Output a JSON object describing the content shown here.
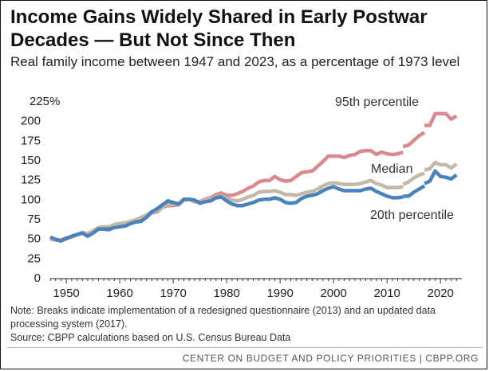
{
  "title": "Income Gains Widely Shared in Early Postwar Decades — But Not Since Then",
  "subtitle": "Real family income between 1947 and 2023, as a percentage of 1973 level",
  "note": "Note: Breaks indicate implementation of a redesigned questionnaire (2013) and an updated data processing system (2017).",
  "source": "Source: CBPP calculations based on U.S. Census Bureau Data",
  "footer": "CENTER ON BUDGET AND POLICY PRIORITIES | CBPP.ORG",
  "chart_data": {
    "type": "line",
    "title": "Income Gains Widely Shared in Early Postwar Decades — But Not Since Then",
    "subtitle": "Real family income between 1947 and 2023, as a percentage of 1973 level",
    "xlim": [
      1947,
      2024
    ],
    "ylim": [
      0,
      225
    ],
    "x_ticks": [
      1950,
      1960,
      1970,
      1980,
      1990,
      2000,
      2010,
      2020
    ],
    "y_ticks": [
      0,
      25,
      50,
      75,
      100,
      125,
      150,
      175,
      200,
      225
    ],
    "y_tick_labels": [
      "0",
      "25",
      "50",
      "75",
      "100",
      "125",
      "150",
      "175",
      "200",
      "225%"
    ],
    "grid": false,
    "breaks": [
      2013,
      2017
    ],
    "series": [
      {
        "name": "95th percentile",
        "color": "#d98a8f",
        "points": [
          [
            1947,
            51
          ],
          [
            1948,
            49
          ],
          [
            1949,
            48
          ],
          [
            1950,
            51
          ],
          [
            1951,
            52
          ],
          [
            1952,
            55
          ],
          [
            1953,
            57
          ],
          [
            1954,
            55
          ],
          [
            1955,
            58
          ],
          [
            1956,
            62
          ],
          [
            1957,
            62
          ],
          [
            1958,
            61
          ],
          [
            1959,
            65
          ],
          [
            1960,
            67
          ],
          [
            1961,
            69
          ],
          [
            1962,
            70
          ],
          [
            1963,
            73
          ],
          [
            1964,
            75
          ],
          [
            1965,
            78
          ],
          [
            1966,
            83
          ],
          [
            1967,
            84
          ],
          [
            1968,
            90
          ],
          [
            1969,
            92
          ],
          [
            1970,
            92
          ],
          [
            1971,
            93
          ],
          [
            1972,
            99
          ],
          [
            1973,
            100
          ],
          [
            1974,
            97
          ],
          [
            1975,
            97
          ],
          [
            1976,
            100
          ],
          [
            1977,
            102
          ],
          [
            1978,
            106
          ],
          [
            1979,
            108
          ],
          [
            1980,
            105
          ],
          [
            1981,
            105
          ],
          [
            1982,
            107
          ],
          [
            1983,
            110
          ],
          [
            1984,
            114
          ],
          [
            1985,
            117
          ],
          [
            1986,
            122
          ],
          [
            1987,
            124
          ],
          [
            1988,
            124
          ],
          [
            1989,
            129
          ],
          [
            1990,
            125
          ],
          [
            1991,
            123
          ],
          [
            1992,
            124
          ],
          [
            1993,
            129
          ],
          [
            1994,
            134
          ],
          [
            1995,
            135
          ],
          [
            1996,
            136
          ],
          [
            1997,
            142
          ],
          [
            1998,
            148
          ],
          [
            1999,
            155
          ],
          [
            2000,
            155
          ],
          [
            2001,
            155
          ],
          [
            2002,
            153
          ],
          [
            2003,
            156
          ],
          [
            2004,
            157
          ],
          [
            2005,
            161
          ],
          [
            2006,
            162
          ],
          [
            2007,
            162
          ],
          [
            2008,
            157
          ],
          [
            2009,
            160
          ],
          [
            2010,
            158
          ],
          [
            2011,
            157
          ],
          [
            2012,
            158
          ],
          [
            2013,
            160
          ],
          null,
          [
            2013,
            167
          ],
          [
            2014,
            169
          ],
          [
            2015,
            175
          ],
          [
            2016,
            181
          ],
          [
            2017,
            185
          ],
          null,
          [
            2017,
            194
          ],
          [
            2018,
            194
          ],
          [
            2019,
            209
          ],
          [
            2020,
            209
          ],
          [
            2021,
            209
          ],
          [
            2022,
            202
          ],
          [
            2023,
            206
          ]
        ]
      },
      {
        "name": "Median",
        "color": "#c2b9a8",
        "points": [
          [
            1947,
            49
          ],
          [
            1948,
            48
          ],
          [
            1949,
            47
          ],
          [
            1950,
            50
          ],
          [
            1951,
            52
          ],
          [
            1952,
            55
          ],
          [
            1953,
            58
          ],
          [
            1954,
            56
          ],
          [
            1955,
            60
          ],
          [
            1956,
            64
          ],
          [
            1957,
            65
          ],
          [
            1958,
            65
          ],
          [
            1959,
            68
          ],
          [
            1960,
            69
          ],
          [
            1961,
            70
          ],
          [
            1962,
            72
          ],
          [
            1963,
            74
          ],
          [
            1964,
            77
          ],
          [
            1965,
            80
          ],
          [
            1966,
            84
          ],
          [
            1967,
            86
          ],
          [
            1968,
            90
          ],
          [
            1969,
            94
          ],
          [
            1970,
            93
          ],
          [
            1971,
            94
          ],
          [
            1972,
            99
          ],
          [
            1973,
            100
          ],
          [
            1974,
            98
          ],
          [
            1975,
            96
          ],
          [
            1976,
            99
          ],
          [
            1977,
            100
          ],
          [
            1978,
            103
          ],
          [
            1979,
            104
          ],
          [
            1980,
            101
          ],
          [
            1981,
            99
          ],
          [
            1982,
            98
          ],
          [
            1983,
            100
          ],
          [
            1984,
            103
          ],
          [
            1985,
            105
          ],
          [
            1986,
            109
          ],
          [
            1987,
            110
          ],
          [
            1988,
            110
          ],
          [
            1989,
            111
          ],
          [
            1990,
            109
          ],
          [
            1991,
            106
          ],
          [
            1992,
            106
          ],
          [
            1993,
            105
          ],
          [
            1994,
            107
          ],
          [
            1995,
            109
          ],
          [
            1996,
            110
          ],
          [
            1997,
            113
          ],
          [
            1998,
            117
          ],
          [
            1999,
            120
          ],
          [
            2000,
            121
          ],
          [
            2001,
            120
          ],
          [
            2002,
            119
          ],
          [
            2003,
            119
          ],
          [
            2004,
            119
          ],
          [
            2005,
            120
          ],
          [
            2006,
            122
          ],
          [
            2007,
            124
          ],
          [
            2008,
            120
          ],
          [
            2009,
            118
          ],
          [
            2010,
            115
          ],
          [
            2011,
            115
          ],
          [
            2012,
            115
          ],
          [
            2013,
            116
          ],
          null,
          [
            2013,
            119
          ],
          [
            2014,
            122
          ],
          [
            2015,
            127
          ],
          [
            2016,
            131
          ],
          [
            2017,
            133
          ],
          null,
          [
            2017,
            137
          ],
          [
            2018,
            139
          ],
          [
            2019,
            147
          ],
          [
            2020,
            144
          ],
          [
            2021,
            144
          ],
          [
            2022,
            140
          ],
          [
            2023,
            145
          ]
        ]
      },
      {
        "name": "20th percentile",
        "color": "#4a83bb",
        "points": [
          [
            1947,
            52
          ],
          [
            1948,
            49
          ],
          [
            1949,
            47
          ],
          [
            1950,
            50
          ],
          [
            1951,
            53
          ],
          [
            1952,
            55
          ],
          [
            1953,
            57
          ],
          [
            1954,
            53
          ],
          [
            1955,
            57
          ],
          [
            1956,
            62
          ],
          [
            1957,
            62
          ],
          [
            1958,
            62
          ],
          [
            1959,
            64
          ],
          [
            1960,
            65
          ],
          [
            1961,
            66
          ],
          [
            1962,
            69
          ],
          [
            1963,
            71
          ],
          [
            1964,
            72
          ],
          [
            1965,
            77
          ],
          [
            1966,
            84
          ],
          [
            1967,
            88
          ],
          [
            1968,
            93
          ],
          [
            1969,
            98
          ],
          [
            1970,
            96
          ],
          [
            1971,
            94
          ],
          [
            1972,
            100
          ],
          [
            1973,
            100
          ],
          [
            1974,
            99
          ],
          [
            1975,
            95
          ],
          [
            1976,
            97
          ],
          [
            1977,
            98
          ],
          [
            1978,
            102
          ],
          [
            1979,
            103
          ],
          [
            1980,
            98
          ],
          [
            1981,
            94
          ],
          [
            1982,
            92
          ],
          [
            1983,
            92
          ],
          [
            1984,
            94
          ],
          [
            1985,
            96
          ],
          [
            1986,
            99
          ],
          [
            1987,
            100
          ],
          [
            1988,
            100
          ],
          [
            1989,
            102
          ],
          [
            1990,
            100
          ],
          [
            1991,
            96
          ],
          [
            1992,
            95
          ],
          [
            1993,
            96
          ],
          [
            1994,
            101
          ],
          [
            1995,
            104
          ],
          [
            1996,
            105
          ],
          [
            1997,
            107
          ],
          [
            1998,
            111
          ],
          [
            1999,
            114
          ],
          [
            2000,
            116
          ],
          [
            2001,
            113
          ],
          [
            2002,
            111
          ],
          [
            2003,
            111
          ],
          [
            2004,
            111
          ],
          [
            2005,
            111
          ],
          [
            2006,
            113
          ],
          [
            2007,
            114
          ],
          [
            2008,
            110
          ],
          [
            2009,
            107
          ],
          [
            2010,
            104
          ],
          [
            2011,
            102
          ],
          [
            2012,
            102
          ],
          [
            2013,
            103
          ],
          null,
          [
            2013,
            104
          ],
          [
            2014,
            104
          ],
          [
            2015,
            109
          ],
          [
            2016,
            113
          ],
          [
            2017,
            117
          ],
          null,
          [
            2017,
            120
          ],
          [
            2018,
            123
          ],
          [
            2019,
            136
          ],
          [
            2020,
            129
          ],
          [
            2021,
            128
          ],
          [
            2022,
            126
          ],
          [
            2023,
            131
          ]
        ]
      }
    ]
  }
}
